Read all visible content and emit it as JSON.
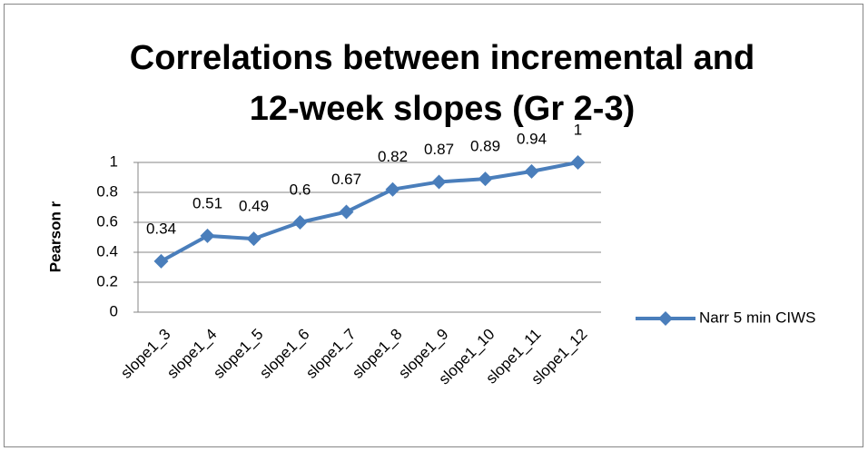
{
  "chart_data": {
    "type": "line",
    "title": "Correlations between incremental and 12-week slopes (Gr 2-3)",
    "ylabel": "Pearson r",
    "categories": [
      "slope1_3",
      "slope1_4",
      "slope1_5",
      "slope1_6",
      "slope1_7",
      "slope1_8",
      "slope1_9",
      "slope1_10",
      "slope1_11",
      "slope1_12"
    ],
    "series": [
      {
        "name": "Narr 5 min CIWS",
        "color": "#4a7ebb",
        "values": [
          0.34,
          0.51,
          0.49,
          0.6,
          0.67,
          0.82,
          0.87,
          0.89,
          0.94,
          1
        ]
      }
    ],
    "ylim": [
      0,
      1
    ],
    "yticks": [
      0,
      0.2,
      0.4,
      0.6,
      0.8,
      1
    ],
    "grid": true,
    "legend": "right",
    "marker": "diamond",
    "data_labels": true
  }
}
